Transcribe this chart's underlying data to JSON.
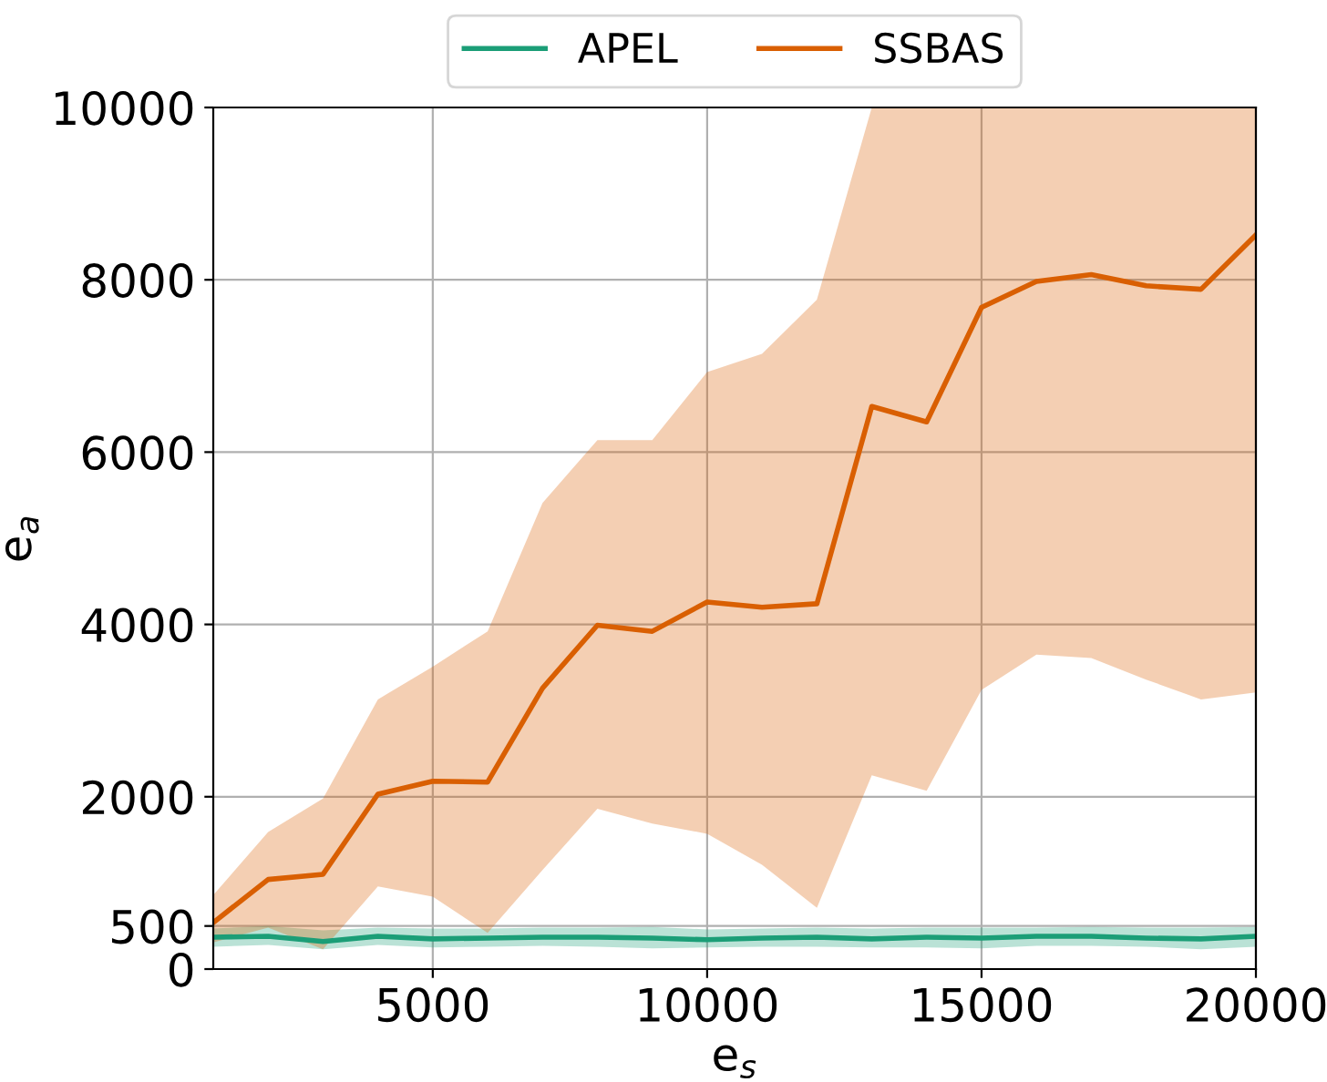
{
  "chart_data": {
    "type": "line",
    "xlabel": "e$_{s}$",
    "ylabel": "e$_{a}$",
    "x": [
      1000,
      2000,
      3000,
      4000,
      5000,
      6000,
      7000,
      8000,
      9000,
      10000,
      11000,
      12000,
      13000,
      14000,
      15000,
      16000,
      17000,
      18000,
      19000,
      20000
    ],
    "xlim": [
      1000,
      20000
    ],
    "xticks": [
      5000,
      10000,
      15000,
      20000
    ],
    "ylim": [
      0,
      10000
    ],
    "yticks": [
      0,
      500,
      2000,
      4000,
      6000,
      8000,
      10000
    ],
    "grid": true,
    "legend": "top",
    "series": [
      {
        "name": "APEL",
        "color": "#1b9e77",
        "values": [
          370,
          380,
          320,
          380,
          350,
          360,
          370,
          370,
          360,
          340,
          360,
          370,
          350,
          370,
          360,
          380,
          380,
          360,
          350,
          380
        ],
        "lower": [
          260,
          280,
          230,
          280,
          250,
          260,
          270,
          260,
          240,
          250,
          260,
          260,
          250,
          250,
          240,
          270,
          270,
          260,
          230,
          260
        ],
        "upper": [
          470,
          500,
          450,
          480,
          470,
          470,
          480,
          480,
          490,
          460,
          470,
          480,
          470,
          480,
          480,
          480,
          490,
          480,
          480,
          490
        ]
      },
      {
        "name": "SSBAS",
        "color": "#d95f02",
        "values": [
          540,
          1040,
          1100,
          2030,
          2180,
          2170,
          3260,
          3990,
          3920,
          4260,
          4200,
          4240,
          6530,
          6350,
          7680,
          7980,
          8060,
          7930,
          7890,
          8520
        ],
        "lower": [
          310,
          480,
          230,
          960,
          840,
          420,
          1150,
          1860,
          1690,
          1570,
          1210,
          710,
          2250,
          2070,
          3240,
          3650,
          3610,
          3360,
          3130,
          3210
        ],
        "upper": [
          860,
          1590,
          1980,
          3130,
          3510,
          3920,
          5410,
          6140,
          6140,
          6930,
          7140,
          7770,
          10000,
          10000,
          10000,
          10000,
          10000,
          10000,
          10000,
          10000
        ]
      }
    ]
  }
}
